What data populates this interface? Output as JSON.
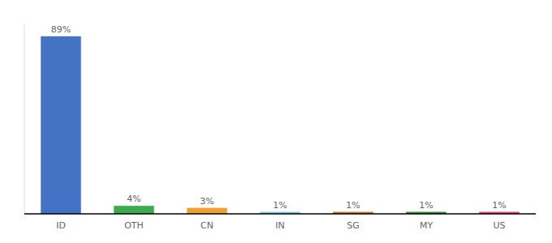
{
  "chart_data": {
    "type": "bar",
    "categories": [
      "ID",
      "OTH",
      "CN",
      "IN",
      "SG",
      "MY",
      "US"
    ],
    "values": [
      89,
      4,
      3,
      1,
      1,
      1,
      1
    ],
    "value_labels": [
      "89%",
      "4%",
      "3%",
      "1%",
      "1%",
      "1%",
      "1%"
    ],
    "colors": [
      "#4472C4",
      "#3DAA4E",
      "#F0A030",
      "#7EC8E3",
      "#C07830",
      "#2E8B3A",
      "#E8407A"
    ],
    "ylim": [
      0,
      95
    ],
    "data_labels": true,
    "tick_labels": "x",
    "grid": false
  }
}
